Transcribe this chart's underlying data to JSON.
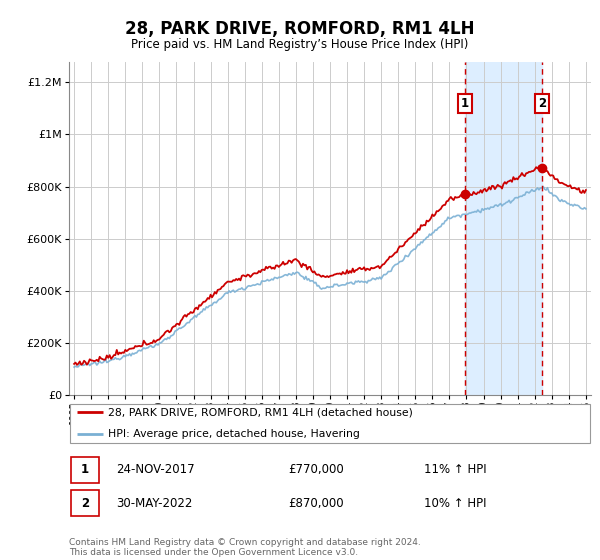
{
  "title": "28, PARK DRIVE, ROMFORD, RM1 4LH",
  "subtitle": "Price paid vs. HM Land Registry’s House Price Index (HPI)",
  "footer": "Contains HM Land Registry data © Crown copyright and database right 2024.\nThis data is licensed under the Open Government Licence v3.0.",
  "legend_line1": "28, PARK DRIVE, ROMFORD, RM1 4LH (detached house)",
  "legend_line2": "HPI: Average price, detached house, Havering",
  "annotation1_date": "24-NOV-2017",
  "annotation1_price": "£770,000",
  "annotation1_hpi": "11% ↑ HPI",
  "annotation2_date": "30-MAY-2022",
  "annotation2_price": "£870,000",
  "annotation2_hpi": "10% ↑ HPI",
  "sale1_year": 2017.89,
  "sale1_price": 770000,
  "sale2_year": 2022.41,
  "sale2_price": 870000,
  "ylim_min": 0,
  "ylim_max": 1280000,
  "red_color": "#cc0000",
  "blue_color": "#7ab0d4",
  "shade_color": "#ddeeff",
  "dot_color": "#cc0000",
  "background_color": "#ffffff",
  "grid_color": "#cccccc",
  "year_start": 1995,
  "year_end": 2025
}
